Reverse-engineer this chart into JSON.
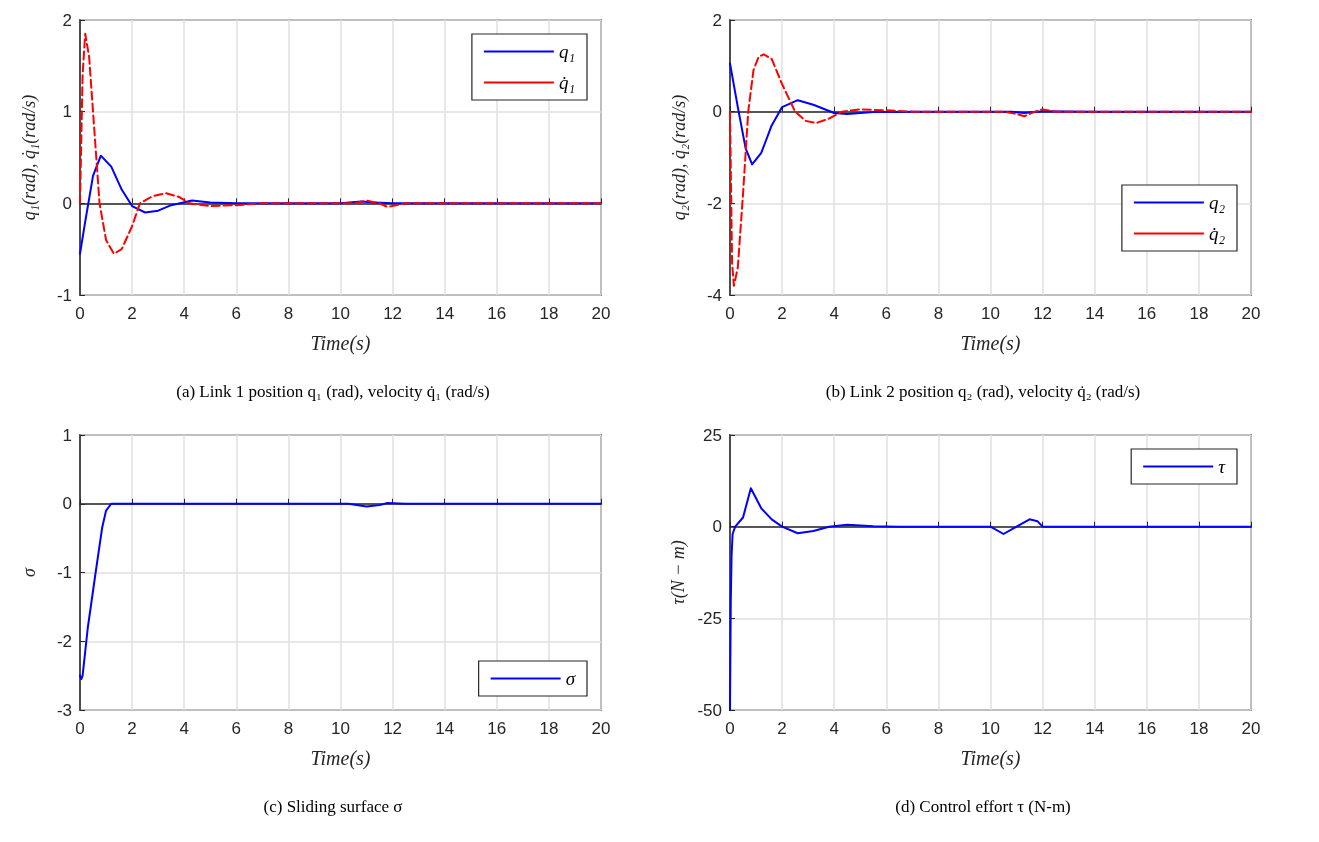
{
  "chart_data": [
    {
      "type": "line",
      "xlabel": "Time(s)",
      "ylabel": "q₁(rad), q̇₁(rad/s)",
      "xlim": [
        0,
        20
      ],
      "xticks": [
        0,
        2,
        4,
        6,
        8,
        10,
        12,
        14,
        16,
        18,
        20
      ],
      "ylim": [
        -1,
        2
      ],
      "yticks": [
        -1,
        0,
        1,
        2
      ],
      "grid": true,
      "legend": "top right",
      "marker": "none",
      "annotations": [
        "(a) Link 1 position q₁ (rad), velocity q̇₁ (rad/s)"
      ],
      "series": [
        {
          "name": "q₁",
          "color": "#0000ff",
          "line_style": "solid",
          "x": [
            0,
            0.2,
            0.5,
            0.8,
            1.2,
            1.6,
            2,
            2.5,
            3,
            3.5,
            4.3,
            5,
            6,
            8,
            10,
            10.8,
            11.3,
            12,
            14,
            16,
            18,
            20
          ],
          "values": [
            -0.55,
            -0.2,
            0.3,
            0.52,
            0.4,
            0.15,
            -0.03,
            -0.1,
            -0.08,
            -0.02,
            0.03,
            0.01,
            0,
            0,
            0,
            0.02,
            0.01,
            0,
            0,
            0,
            0,
            0
          ]
        },
        {
          "name": "q̇₁",
          "color": "#ff0000",
          "line_style": "dashed",
          "x": [
            0,
            0.1,
            0.2,
            0.35,
            0.5,
            0.75,
            1,
            1.3,
            1.6,
            2,
            2.3,
            2.8,
            3.3,
            3.8,
            4.2,
            5,
            6,
            7,
            8,
            10,
            10.5,
            11,
            11.5,
            11.8,
            12.5,
            14,
            16,
            18,
            20
          ],
          "values": [
            0,
            1.4,
            1.85,
            1.6,
            1,
            0,
            -0.4,
            -0.55,
            -0.5,
            -0.25,
            0,
            0.08,
            0.11,
            0.07,
            0,
            -0.03,
            -0.02,
            0,
            0,
            0,
            0,
            0.03,
            0,
            -0.04,
            0,
            0,
            0,
            0,
            0
          ]
        }
      ]
    },
    {
      "type": "line",
      "xlabel": "Time(s)",
      "ylabel": "q₂(rad), q̇₂(rad/s)",
      "xlim": [
        0,
        20
      ],
      "xticks": [
        0,
        2,
        4,
        6,
        8,
        10,
        12,
        14,
        16,
        18,
        20
      ],
      "ylim": [
        -4,
        2
      ],
      "yticks": [
        -4,
        -2,
        0,
        2
      ],
      "grid": true,
      "legend": "right",
      "marker": "none",
      "annotations": [
        "(b) Link 2 position q₂ (rad), velocity q̇₂ (rad/s)"
      ],
      "series": [
        {
          "name": "q₂",
          "color": "#0000ff",
          "line_style": "solid",
          "x": [
            0,
            0.3,
            0.6,
            0.85,
            1.2,
            1.6,
            2,
            2.6,
            3.2,
            4,
            4.5,
            5.5,
            7,
            10,
            10.8,
            11.3,
            12,
            14,
            16,
            18,
            20
          ],
          "values": [
            1.05,
            0.1,
            -0.8,
            -1.15,
            -0.9,
            -0.3,
            0.1,
            0.25,
            0.15,
            -0.03,
            -0.05,
            -0.01,
            0,
            0,
            0,
            -0.03,
            0.01,
            0,
            0,
            0,
            0
          ]
        },
        {
          "name": "q̇₂",
          "color": "#ff0000",
          "line_style": "dashed",
          "x": [
            0,
            0.08,
            0.15,
            0.3,
            0.5,
            0.7,
            0.9,
            1.1,
            1.3,
            1.6,
            2,
            2.5,
            2.9,
            3.3,
            3.8,
            4.3,
            5,
            6,
            7,
            10,
            10.5,
            11,
            11.3,
            11.7,
            12,
            12.5,
            14,
            16,
            18,
            20
          ],
          "values": [
            0,
            -3.3,
            -3.8,
            -3.4,
            -1.8,
            0,
            0.9,
            1.2,
            1.25,
            1.15,
            0.6,
            0,
            -0.2,
            -0.25,
            -0.15,
            0,
            0.05,
            0.03,
            0,
            0,
            0,
            -0.05,
            -0.1,
            0,
            0.05,
            0,
            0,
            0,
            0,
            0
          ]
        }
      ]
    },
    {
      "type": "line",
      "xlabel": "Time(s)",
      "ylabel": "σ",
      "xlim": [
        0,
        20
      ],
      "xticks": [
        0,
        2,
        4,
        6,
        8,
        10,
        12,
        14,
        16,
        18,
        20
      ],
      "ylim": [
        -3,
        1
      ],
      "yticks": [
        -3,
        -2,
        -1,
        0,
        1
      ],
      "grid": true,
      "legend": "bottom right",
      "marker": "none",
      "annotations": [
        "(c) Sliding surface σ"
      ],
      "series": [
        {
          "name": "σ",
          "color": "#0000ff",
          "line_style": "solid",
          "x": [
            0,
            0.05,
            0.1,
            0.3,
            0.6,
            0.85,
            1,
            1.2,
            2,
            4,
            6,
            8,
            10,
            10.3,
            11,
            11.5,
            11.8,
            12.5,
            14,
            16,
            18,
            20
          ],
          "values": [
            -2.5,
            -2.55,
            -2.5,
            -1.8,
            -1,
            -0.35,
            -0.1,
            0,
            0,
            0,
            0,
            0,
            0,
            0,
            -0.04,
            -0.02,
            0.01,
            0,
            0,
            0,
            0,
            0
          ]
        }
      ]
    },
    {
      "type": "line",
      "xlabel": "Time(s)",
      "ylabel": "τ(N − m)",
      "xlim": [
        0,
        20
      ],
      "xticks": [
        0,
        2,
        4,
        6,
        8,
        10,
        12,
        14,
        16,
        18,
        20
      ],
      "ylim": [
        -50,
        25
      ],
      "yticks": [
        -50,
        -25,
        0,
        25
      ],
      "grid": true,
      "legend": "top right",
      "marker": "none",
      "annotations": [
        "(d) Control effort τ (N-m)"
      ],
      "series": [
        {
          "name": "τ",
          "color": "#0000ff",
          "line_style": "solid",
          "x": [
            0,
            0.03,
            0.06,
            0.1,
            0.2,
            0.5,
            0.8,
            1.2,
            1.6,
            2,
            2.6,
            3.2,
            3.8,
            4.5,
            5.5,
            6.5,
            8,
            10,
            10.5,
            11,
            11.5,
            11.8,
            12,
            14,
            16,
            18,
            20
          ],
          "values": [
            -50,
            -20,
            -8,
            -2,
            0,
            2.5,
            10.5,
            5,
            2,
            0,
            -1.8,
            -1.2,
            0,
            0.5,
            0.1,
            0,
            0,
            0,
            -2,
            0,
            2,
            1.5,
            0,
            0,
            0,
            0,
            0
          ]
        }
      ]
    }
  ]
}
